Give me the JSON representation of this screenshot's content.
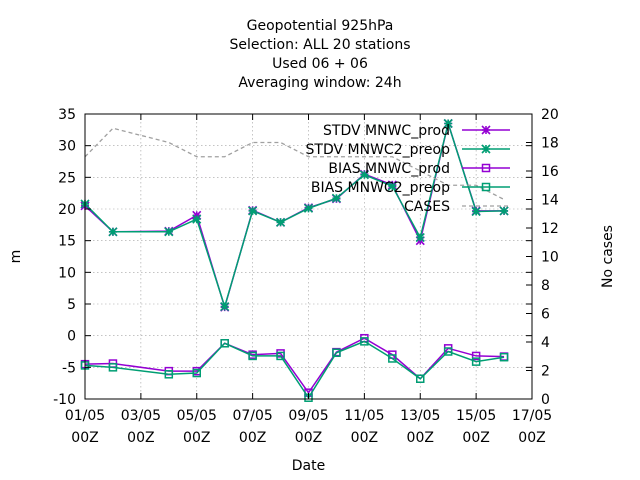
{
  "chart_data": {
    "type": "line",
    "title_lines": [
      "Geopotential 925hPa",
      "Selection: ALL      20 stations",
      "Used  06 + 06",
      "Averaging window: 24h"
    ],
    "xlabel": "Date",
    "ylabel": "m",
    "y2label": "No cases",
    "xlim": [
      0,
      16
    ],
    "ylim": [
      -10,
      35
    ],
    "y2lim": [
      0,
      20
    ],
    "x_ticks": [
      0,
      2,
      4,
      6,
      8,
      10,
      12,
      14,
      16
    ],
    "x_tick_labels": [
      [
        "01/05",
        "00Z"
      ],
      [
        "03/05",
        "00Z"
      ],
      [
        "05/05",
        "00Z"
      ],
      [
        "07/05",
        "00Z"
      ],
      [
        "09/05",
        "00Z"
      ],
      [
        "11/05",
        "00Z"
      ],
      [
        "13/05",
        "00Z"
      ],
      [
        "15/05",
        "00Z"
      ],
      [
        "17/05",
        "00Z"
      ]
    ],
    "y_ticks": [
      -10,
      -5,
      0,
      5,
      10,
      15,
      20,
      25,
      30,
      35
    ],
    "y2_ticks": [
      0,
      2,
      4,
      6,
      8,
      10,
      12,
      14,
      16,
      18,
      20
    ],
    "grid": true,
    "legend_position": "top-right",
    "x": [
      0,
      1,
      3,
      4,
      5,
      6,
      7,
      8,
      9,
      10,
      11,
      12,
      13,
      14,
      15
    ],
    "series": [
      {
        "name": "STDV MNWC_prod",
        "axis": "y1",
        "color": "#9400d3",
        "marker": "star",
        "x": [
          0,
          1,
          3,
          4,
          5,
          6,
          7,
          8,
          9,
          10,
          11,
          12,
          13,
          14,
          15
        ],
        "values": [
          20.5,
          16.4,
          16.5,
          19.0,
          4.5,
          19.8,
          17.9,
          20.2,
          21.6,
          25.5,
          23.8,
          15.0,
          33.5,
          19.7,
          19.7
        ]
      },
      {
        "name": "STDV MNWC2_preop",
        "axis": "y1",
        "color": "#009e73",
        "marker": "star",
        "x": [
          0,
          1,
          3,
          4,
          5,
          6,
          7,
          8,
          9,
          10,
          11,
          12,
          13,
          14,
          15
        ],
        "values": [
          20.8,
          16.4,
          16.4,
          18.4,
          4.6,
          19.7,
          17.9,
          20.1,
          21.7,
          25.4,
          23.6,
          15.5,
          33.5,
          19.6,
          19.7
        ]
      },
      {
        "name": "BIAS MNWC_prod",
        "axis": "y1",
        "color": "#9400d3",
        "marker": "square",
        "x": [
          0,
          1,
          3,
          4,
          5,
          6,
          7,
          8,
          9,
          10,
          11,
          12,
          13,
          14,
          15
        ],
        "values": [
          -4.5,
          -4.4,
          -5.6,
          -5.6,
          -1.2,
          -3.0,
          -2.8,
          -9.0,
          -2.6,
          -0.4,
          -3.0,
          -6.8,
          -2.0,
          -3.2,
          -3.3
        ]
      },
      {
        "name": "BIAS MNWC2_preop",
        "axis": "y1",
        "color": "#009e73",
        "marker": "square",
        "x": [
          0,
          1,
          3,
          4,
          5,
          6,
          7,
          8,
          9,
          10,
          11,
          12,
          13,
          14,
          15
        ],
        "values": [
          -4.7,
          -5.0,
          -6.1,
          -5.9,
          -1.2,
          -3.2,
          -3.2,
          -9.8,
          -2.7,
          -0.9,
          -3.6,
          -6.8,
          -2.5,
          -4.1,
          -3.4
        ]
      },
      {
        "name": "CASES",
        "axis": "y2",
        "color": "#a0a0a0",
        "marker": "none",
        "dashed": true,
        "x": [
          0,
          1,
          3,
          4,
          5,
          6,
          7,
          8,
          9,
          10,
          11,
          12,
          13,
          14,
          15
        ],
        "values": [
          17,
          19,
          18,
          17,
          17,
          18,
          18,
          17,
          17,
          17,
          17,
          16,
          15,
          15,
          14
        ]
      }
    ]
  }
}
